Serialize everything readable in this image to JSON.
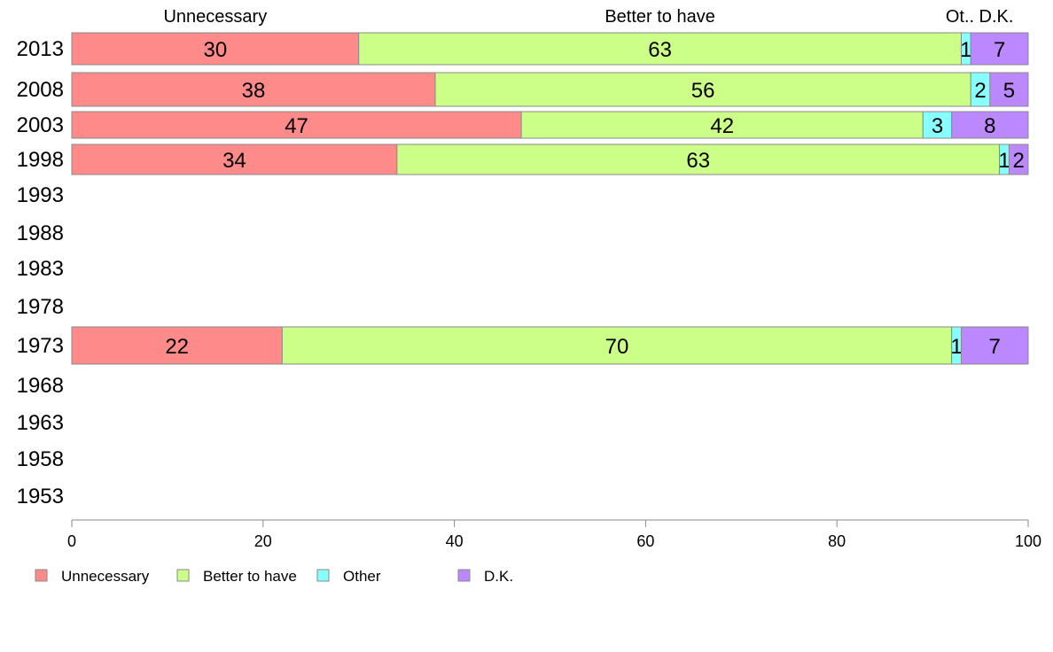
{
  "chart_data": {
    "type": "bar",
    "orientation": "horizontal",
    "stacked": true,
    "categories": [
      "2013",
      "2008",
      "2003",
      "1998",
      "1993",
      "1988",
      "1983",
      "1978",
      "1973",
      "1968",
      "1963",
      "1958",
      "1953"
    ],
    "series": [
      {
        "name": "Unnecessary",
        "color": "#FF8A8A",
        "values": [
          30,
          38,
          47,
          34,
          null,
          null,
          null,
          null,
          22,
          null,
          null,
          null,
          null
        ]
      },
      {
        "name": "Better to have",
        "color": "#CCFF88",
        "values": [
          63,
          56,
          42,
          63,
          null,
          null,
          null,
          null,
          70,
          null,
          null,
          null,
          null
        ]
      },
      {
        "name": "Other",
        "color": "#88FFFF",
        "values": [
          1,
          2,
          3,
          1,
          null,
          null,
          null,
          null,
          1,
          null,
          null,
          null,
          null
        ]
      },
      {
        "name": "D.K.",
        "color": "#BB88FF",
        "values": [
          7,
          5,
          8,
          2,
          null,
          null,
          null,
          null,
          7,
          null,
          null,
          null,
          null
        ]
      }
    ],
    "top_labels": [
      "Unnecessary",
      "Better to have",
      "Ot..",
      "D.K."
    ],
    "xlim": [
      0,
      100
    ],
    "xticks": [
      "0",
      "20",
      "40",
      "60",
      "80",
      "100"
    ],
    "legend": {
      "position": "bottom-left",
      "items": [
        "Unnecessary",
        "Better to have",
        "Other",
        "D.K."
      ]
    }
  }
}
